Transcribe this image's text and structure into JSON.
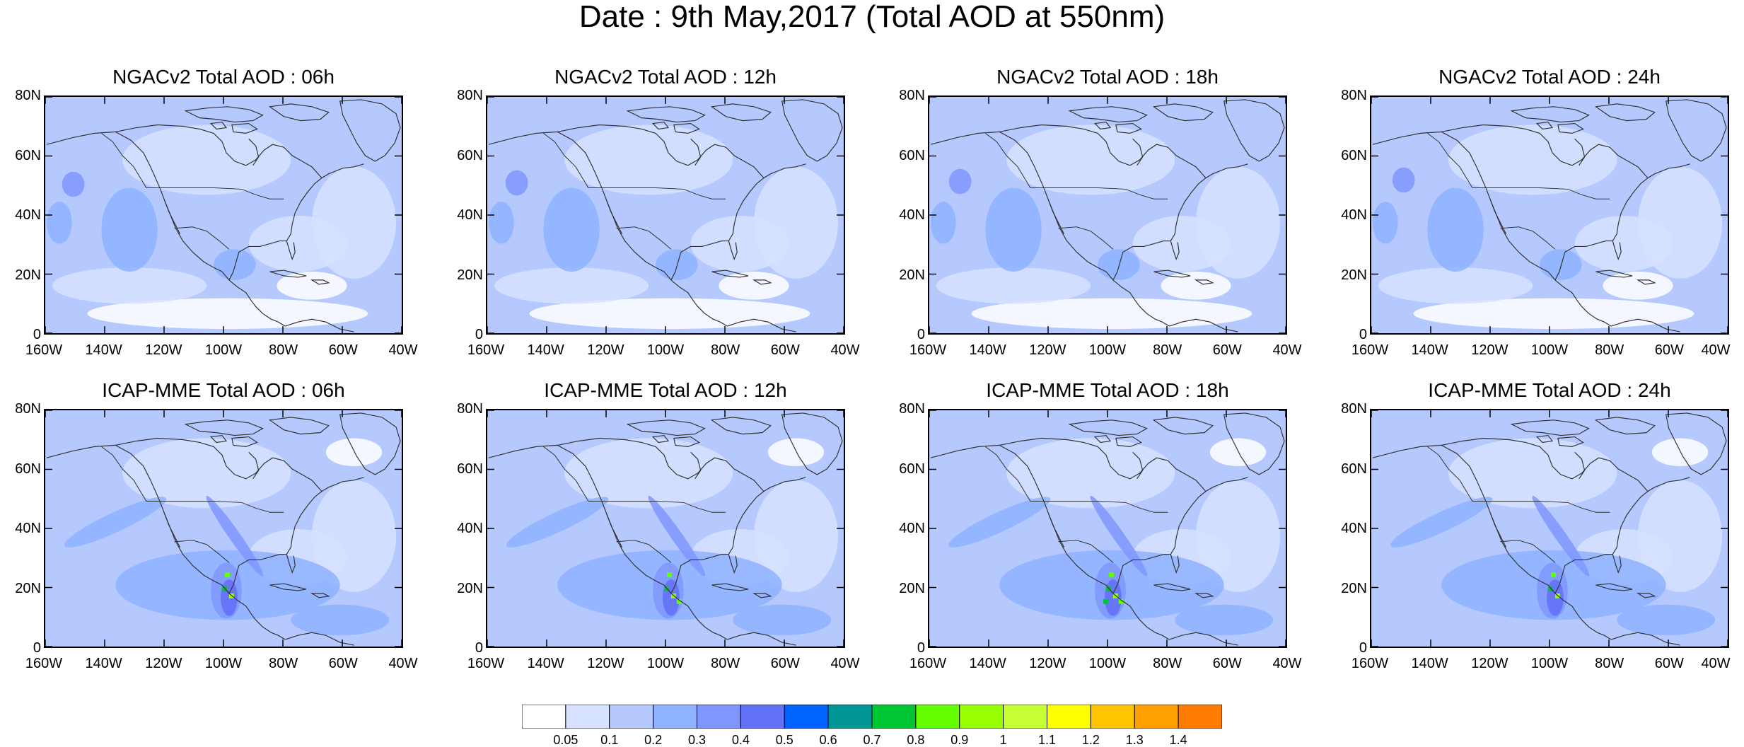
{
  "title": "Date : 9th May,2017 (Total AOD at 550nm)",
  "panels": [
    {
      "title": "NGACv2 Total AOD : 06h",
      "model": "NGACv2",
      "forecast_hour": "06h"
    },
    {
      "title": "NGACv2 Total AOD : 12h",
      "model": "NGACv2",
      "forecast_hour": "12h"
    },
    {
      "title": "NGACv2 Total AOD : 18h",
      "model": "NGACv2",
      "forecast_hour": "18h"
    },
    {
      "title": "NGACv2 Total AOD : 24h",
      "model": "NGACv2",
      "forecast_hour": "24h"
    },
    {
      "title": "ICAP-MME Total AOD : 06h",
      "model": "ICAP-MME",
      "forecast_hour": "06h"
    },
    {
      "title": "ICAP-MME Total AOD : 12h",
      "model": "ICAP-MME",
      "forecast_hour": "12h"
    },
    {
      "title": "ICAP-MME Total AOD : 18h",
      "model": "ICAP-MME",
      "forecast_hour": "18h"
    },
    {
      "title": "ICAP-MME Total AOD : 24h",
      "model": "ICAP-MME",
      "forecast_hour": "24h"
    }
  ],
  "axes": {
    "y_ticks": [
      "80N",
      "60N",
      "40N",
      "20N",
      "0"
    ],
    "x_ticks": [
      "160W",
      "140W",
      "120W",
      "100W",
      "80W",
      "60W",
      "40W"
    ],
    "lat_range": [
      0,
      80
    ],
    "lon_range": [
      -160,
      -40
    ]
  },
  "colorbar": {
    "levels": [
      "0.05",
      "0.1",
      "0.2",
      "0.3",
      "0.4",
      "0.5",
      "0.6",
      "0.7",
      "0.8",
      "0.9",
      "1",
      "1.1",
      "1.2",
      "1.3",
      "1.4"
    ],
    "colors": [
      "#ffffff",
      "#d6e2ff",
      "#b5c9ff",
      "#8eb2ff",
      "#7f96ff",
      "#6370f8",
      "#0063ff",
      "#009696",
      "#00c633",
      "#63ff00",
      "#96ff00",
      "#c6ff33",
      "#ffff00",
      "#ffc600",
      "#ffa000",
      "#ff7c00",
      "#ff1900"
    ]
  },
  "map_colors": {
    "ocean_base": "#b5c9ff",
    "low": "#d6e2ff",
    "mid": "#8eb2ff",
    "high": "#7f96ff",
    "very_high": "#6370f8",
    "clean": "#ffffff",
    "coast": "#333333"
  }
}
